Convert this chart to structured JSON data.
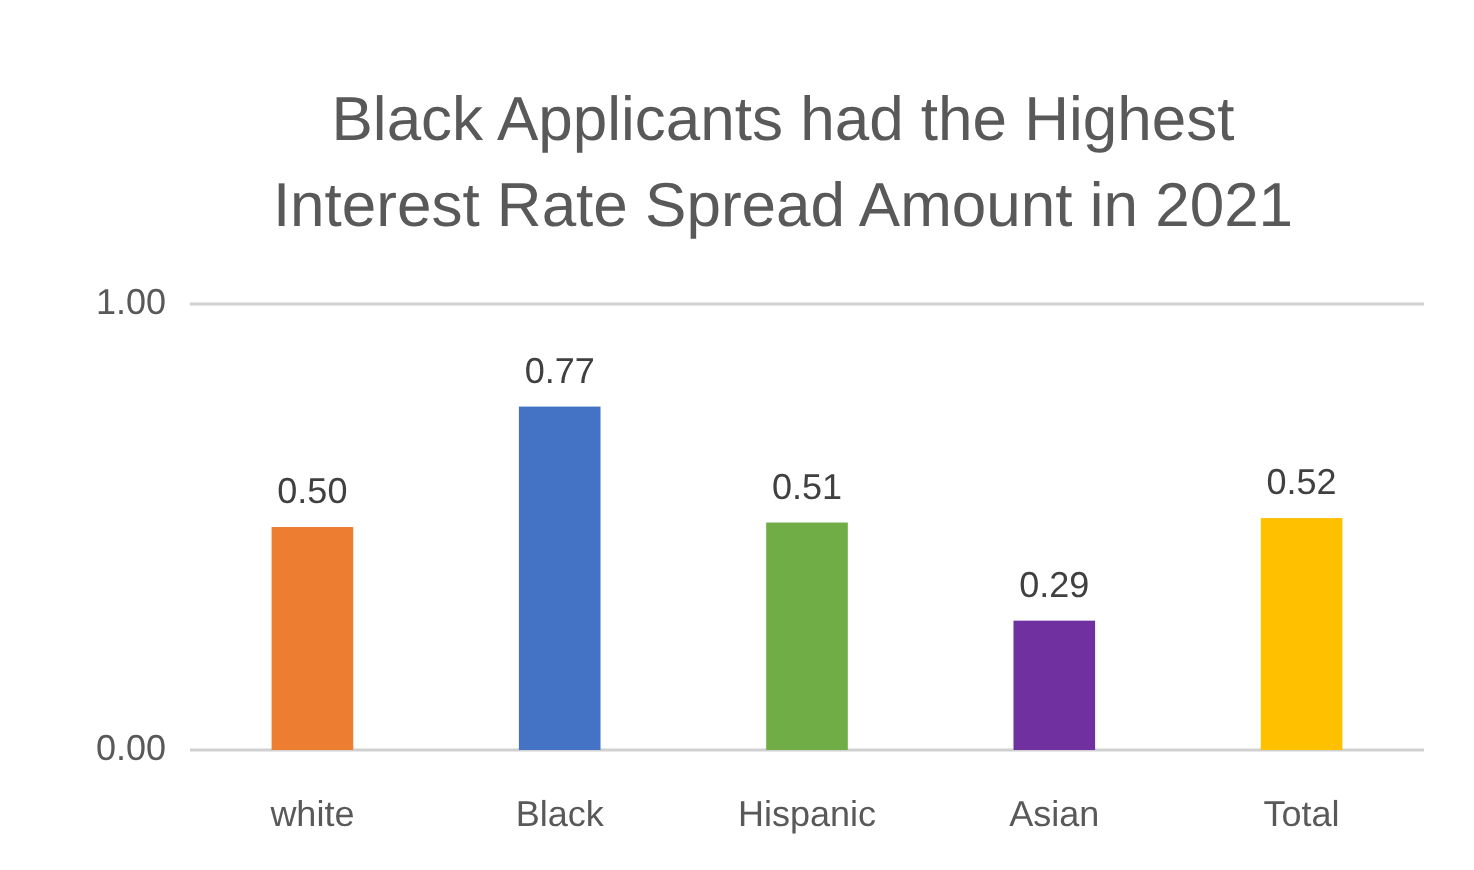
{
  "chart_data": {
    "type": "bar",
    "title": "Black Applicants had the Highest Interest Rate Spread Amount in 2021",
    "categories": [
      "white",
      "Black",
      "Hispanic",
      "Asian",
      "Total"
    ],
    "values": [
      0.5,
      0.77,
      0.51,
      0.29,
      0.52
    ],
    "colors": [
      "#ed7d31",
      "#4472c4",
      "#70ad47",
      "#7030a0",
      "#ffc000"
    ],
    "ylim": [
      0,
      1
    ],
    "yticks": [
      {
        "value": 0,
        "label": "0.00"
      },
      {
        "value": 1,
        "label": "1.00"
      }
    ],
    "value_labels": [
      "0.50",
      "0.77",
      "0.51",
      "0.29",
      "0.52"
    ]
  }
}
